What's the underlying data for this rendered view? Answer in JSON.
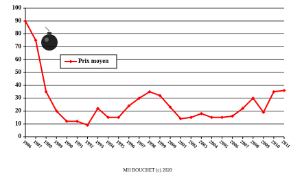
{
  "chart_data": {
    "type": "line",
    "categories": [
      "1986",
      "1987",
      "1988",
      "1989",
      "1990",
      "1991",
      "1992",
      "1993",
      "1994",
      "1995",
      "1996",
      "1997",
      "1998",
      "1999",
      "2000",
      "2001",
      "2002",
      "2003",
      "2004",
      "2005",
      "2006",
      "2007",
      "2008",
      "2009",
      "2010",
      "2011"
    ],
    "series": [
      {
        "name": "Prix moyen",
        "color": "#ff0000",
        "values": [
          90,
          75,
          35,
          20,
          12,
          12,
          9,
          22,
          15,
          15,
          24,
          30,
          35,
          32,
          23,
          14,
          15,
          18,
          15,
          15,
          16,
          22,
          30,
          19,
          35,
          36
        ]
      }
    ],
    "ylim": [
      0,
      100
    ],
    "yticks": [
      0,
      10,
      20,
      30,
      40,
      50,
      60,
      70,
      80,
      90,
      100
    ],
    "grid": true,
    "legend": "center left",
    "footer": "MH BOUCHET (c) 2020"
  }
}
